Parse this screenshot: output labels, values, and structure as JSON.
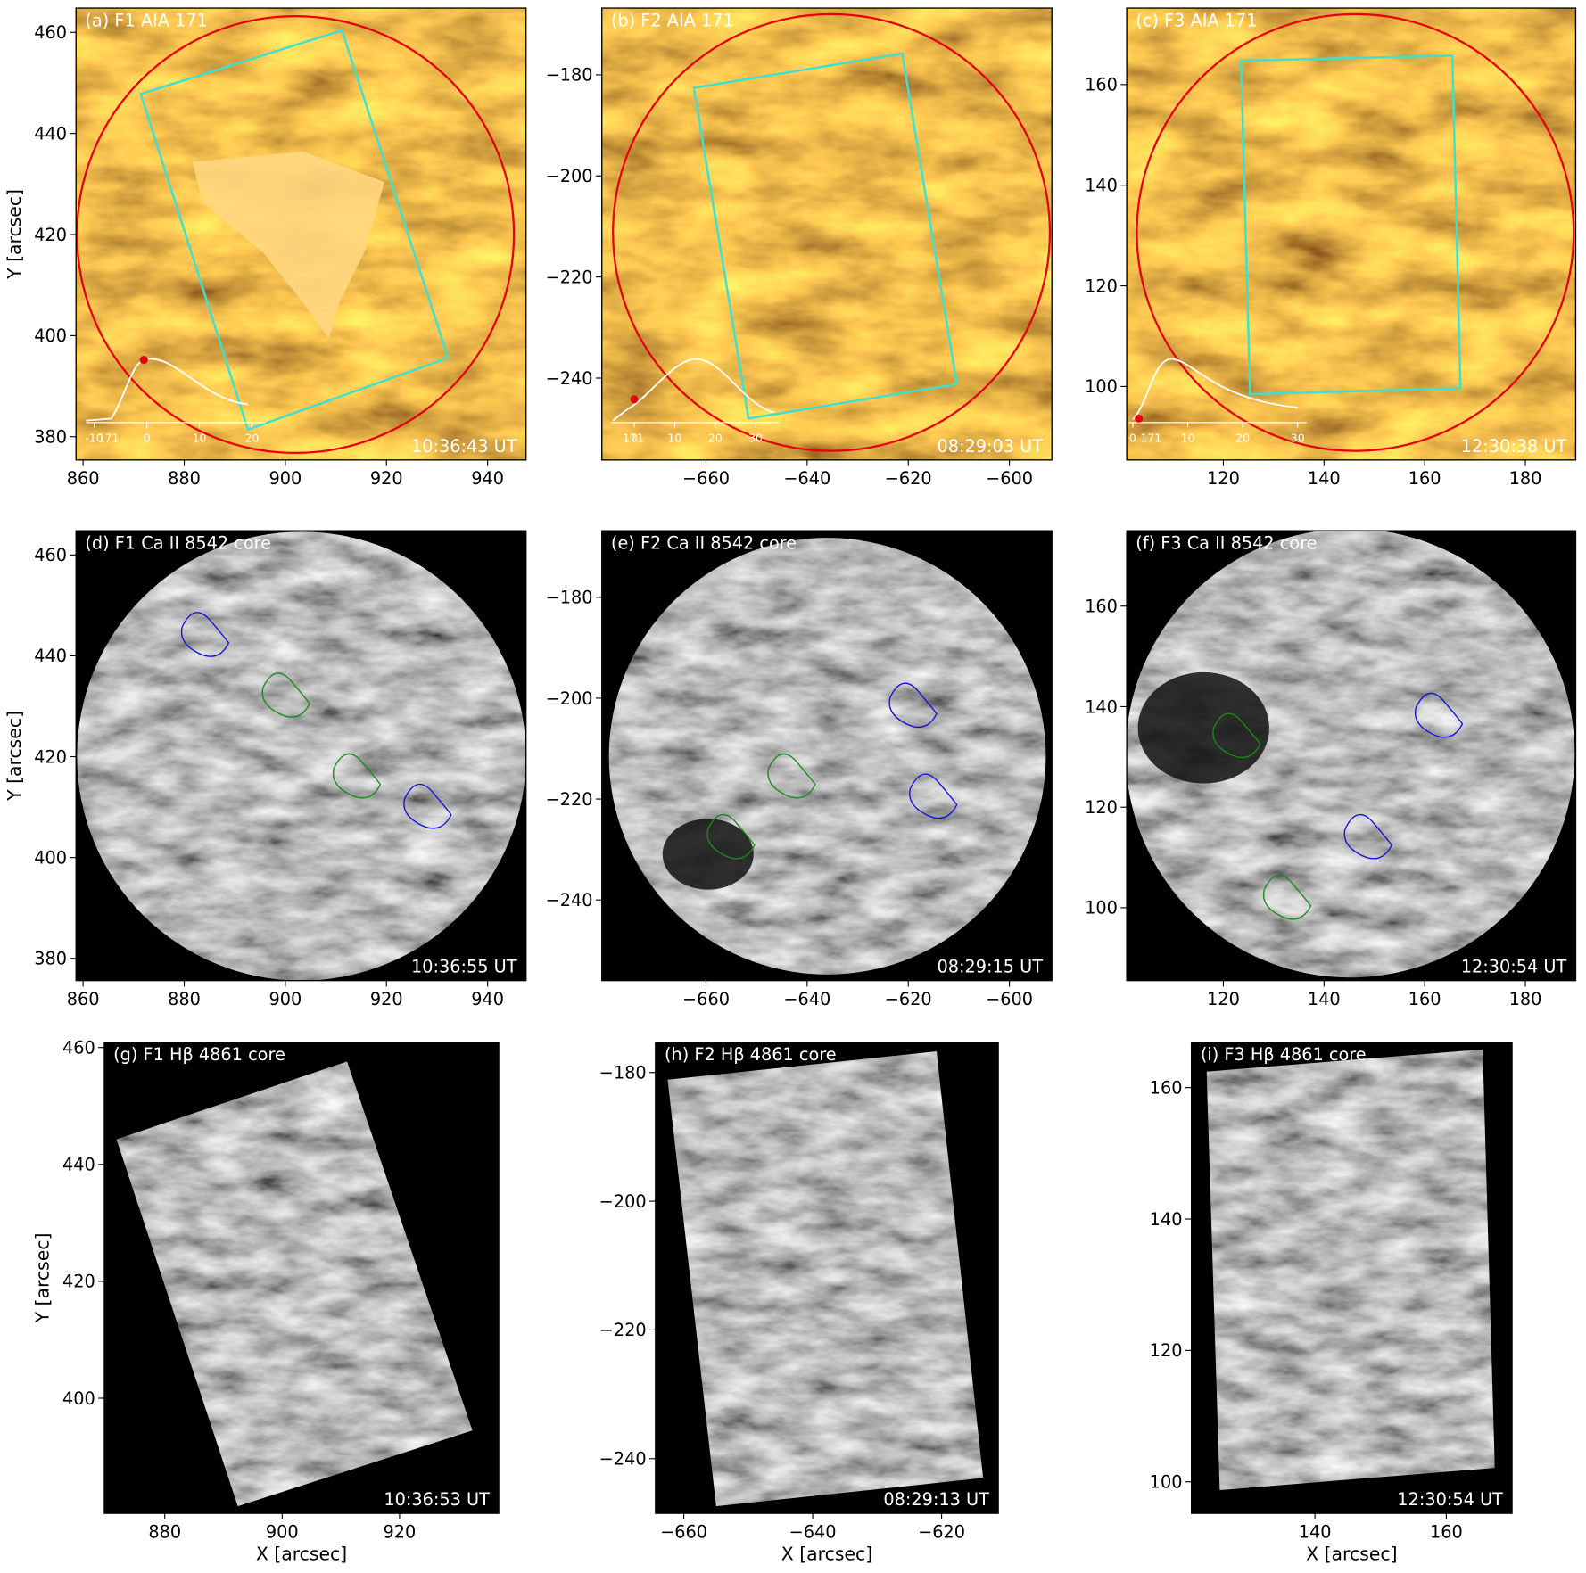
{
  "chart_data": [
    {
      "type": "image",
      "title": "(a) F1 AIA 171",
      "timestamp": "10:36:43 UT",
      "ylabel": "Y [arcsec]",
      "xlim": [
        858.6,
        947.6
      ],
      "ylim": [
        375.4,
        464.8
      ],
      "xticks": [
        860,
        880,
        900,
        920,
        940
      ],
      "yticks": [
        380,
        400,
        420,
        440,
        460
      ],
      "inset": {
        "label": "171",
        "xticks": [
          -10,
          0,
          10,
          20
        ]
      }
    },
    {
      "type": "image",
      "title": "(b) F2 AIA 171",
      "timestamp": "08:29:03 UT",
      "xlim": [
        -680.6,
        -591.6
      ],
      "ylim": [
        -256.2,
        -166.8
      ],
      "xticks": [
        {
          "value": -660,
          "label": "−660"
        },
        {
          "value": -640,
          "label": "−640"
        },
        {
          "value": -620,
          "label": "−620"
        },
        {
          "value": -600,
          "label": "−600"
        }
      ],
      "yticks": [
        {
          "value": -240,
          "label": "−240"
        },
        {
          "value": -220,
          "label": "−220"
        },
        {
          "value": -200,
          "label": "−200"
        },
        {
          "value": -180,
          "label": "−180"
        }
      ],
      "inset": {
        "label": "171",
        "xticks": [
          0,
          10,
          20,
          30
        ]
      }
    },
    {
      "type": "image",
      "title": "(c) F3 AIA 171",
      "timestamp": "12:30:38 UT",
      "xlim": [
        100.8,
        190
      ],
      "ylim": [
        85.4,
        175.2
      ],
      "xticks": [
        120,
        140,
        160,
        180
      ],
      "yticks": [
        100,
        120,
        140,
        160
      ],
      "inset": {
        "label": "171",
        "xticks": [
          0,
          10,
          20,
          30
        ]
      }
    },
    {
      "type": "image",
      "title": "(d) F1 Ca II 8542 core",
      "timestamp": "10:36:55 UT",
      "ylabel": "Y [arcsec]",
      "xlim": [
        858.6,
        947.6
      ],
      "ylim": [
        375.6,
        464.8
      ],
      "xticks": [
        860,
        880,
        900,
        920,
        940
      ],
      "yticks": [
        380,
        400,
        420,
        440,
        460
      ]
    },
    {
      "type": "image",
      "title": "(e) F2 Ca II 8542 core",
      "timestamp": "08:29:15 UT",
      "xlim": [
        -680.6,
        -591.6
      ],
      "ylim": [
        -256,
        -166.8
      ],
      "xticks": [
        {
          "value": -660,
          "label": "−660"
        },
        {
          "value": -640,
          "label": "−640"
        },
        {
          "value": -620,
          "label": "−620"
        },
        {
          "value": -600,
          "label": "−600"
        }
      ],
      "yticks": [
        {
          "value": -240,
          "label": "−240"
        },
        {
          "value": -220,
          "label": "−220"
        },
        {
          "value": -200,
          "label": "−200"
        },
        {
          "value": -180,
          "label": "−180"
        }
      ]
    },
    {
      "type": "image",
      "title": "(f) F3 Ca II 8542 core",
      "timestamp": "12:30:54 UT",
      "xlim": [
        100.8,
        190
      ],
      "ylim": [
        85.5,
        175
      ],
      "xticks": [
        120,
        140,
        160,
        180
      ],
      "yticks": [
        100,
        120,
        140,
        160
      ]
    },
    {
      "type": "image",
      "title": "(g) F1 Hβ 4861 core",
      "timestamp": "10:36:53 UT",
      "ylabel": "Y [arcsec]",
      "xlabel": "X [arcsec]",
      "xlim": [
        869.7,
        936.9
      ],
      "ylim": [
        380.3,
        460.9
      ],
      "xticks": [
        880,
        900,
        920
      ],
      "yticks": [
        400,
        420,
        440,
        460
      ]
    },
    {
      "type": "image",
      "title": "(h) F2 Hβ 4861 core",
      "timestamp": "08:29:13 UT",
      "xlabel": "X [arcsec]",
      "xlim": [
        -664.4,
        -611.2
      ],
      "ylim": [
        -248.5,
        -175.3
      ],
      "xticks": [
        {
          "value": -660,
          "label": "−660"
        },
        {
          "value": -640,
          "label": "−640"
        },
        {
          "value": -620,
          "label": "−620"
        }
      ],
      "yticks": [
        {
          "value": -240,
          "label": "−240"
        },
        {
          "value": -220,
          "label": "−220"
        },
        {
          "value": -200,
          "label": "−200"
        },
        {
          "value": -180,
          "label": "−180"
        }
      ]
    },
    {
      "type": "image",
      "title": "(i) F3 Hβ 4861 core",
      "timestamp": "12:30:54 UT",
      "xlabel": "X [arcsec]",
      "xlim": [
        121.2,
        170
      ],
      "ylim": [
        95.2,
        166.9
      ],
      "xticks": [
        140,
        160
      ],
      "yticks": [
        100,
        120,
        140,
        160
      ]
    }
  ]
}
